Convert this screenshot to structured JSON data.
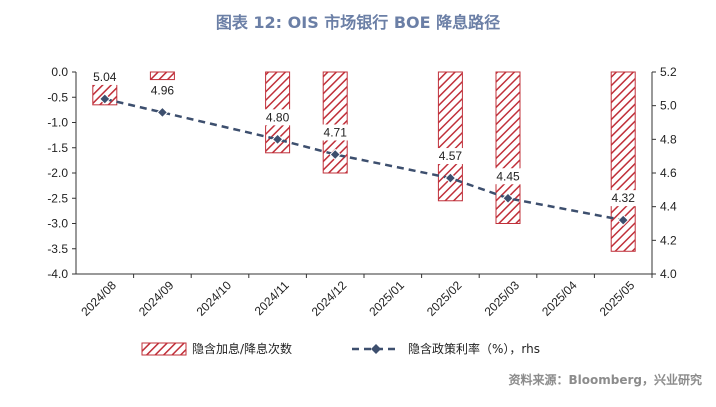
{
  "title": "图表 12: OIS 市场银行 BOE 降息路径",
  "source": "资料来源：Bloomberg，兴业研究",
  "colors": {
    "bar_stripe": "#c0303a",
    "line": "#3d4f6e",
    "axis": "#333333",
    "title": "#6b7fa6"
  },
  "chart_data": {
    "type": "bar",
    "categories": [
      "2024/08",
      "2024/09",
      "2024/10",
      "2024/11",
      "2024/12",
      "2025/01",
      "2025/02",
      "2025/03",
      "2025/04",
      "2025/05"
    ],
    "y_left": {
      "ylim": [
        -4.0,
        0.0
      ],
      "ticks": [
        "0.0",
        "-0.5",
        "-1.0",
        "-1.5",
        "-2.0",
        "-2.5",
        "-3.0",
        "-3.5",
        "-4.0"
      ]
    },
    "y_right": {
      "ylim": [
        4.0,
        5.2
      ],
      "ticks": [
        "5.2",
        "5.0",
        "4.8",
        "4.6",
        "4.4",
        "4.2",
        "4.0"
      ]
    },
    "series": [
      {
        "name": "隐含加息/降息次数",
        "type": "bar",
        "axis": "left",
        "values": [
          -0.65,
          -0.15,
          null,
          -1.6,
          -2.0,
          null,
          -2.55,
          -3.0,
          null,
          -3.55
        ]
      },
      {
        "name": "隐含政策利率（%），rhs",
        "type": "line",
        "axis": "right",
        "values": [
          5.04,
          4.96,
          null,
          4.8,
          4.71,
          null,
          4.57,
          4.45,
          null,
          4.32
        ],
        "labels": [
          "5.04",
          "4.96",
          "",
          "4.80",
          "4.71",
          "",
          "4.57",
          "4.45",
          "",
          "4.32"
        ]
      }
    ],
    "legend_position": "bottom",
    "grid": false
  }
}
